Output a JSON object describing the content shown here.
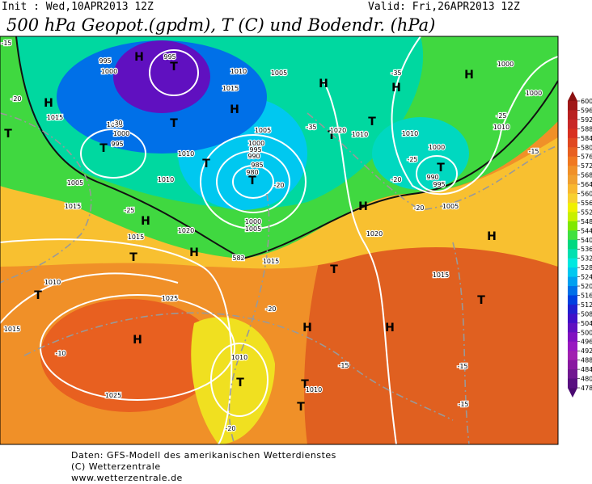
{
  "header": {
    "init": "Init : Wed,10APR2013 12Z",
    "valid": "Valid: Fri,26APR2013 12Z",
    "title": "500 hPa Geopot.(gpdm), T (C) und Bodendr. (hPa)"
  },
  "legend": {
    "ticks": [
      600,
      596,
      592,
      588,
      584,
      580,
      576,
      572,
      568,
      564,
      560,
      556,
      552,
      548,
      544,
      540,
      536,
      532,
      528,
      524,
      520,
      516,
      512,
      508,
      504,
      500,
      496,
      492,
      488,
      484,
      480,
      478
    ],
    "colors": [
      "#a01818",
      "#b82020",
      "#c82828",
      "#d83020",
      "#e04820",
      "#e86020",
      "#f07820",
      "#f09028",
      "#f0a030",
      "#f8b830",
      "#f8d030",
      "#f0f000",
      "#c8f000",
      "#80e800",
      "#40e040",
      "#00d880",
      "#00e0b0",
      "#00e8e0",
      "#00c8f0",
      "#00a0f0",
      "#0070e8",
      "#0040e0",
      "#2020d0",
      "#4010c8",
      "#6010c0",
      "#8010c0",
      "#9818c0",
      "#a020b0",
      "#8818a0",
      "#701890",
      "#581080"
    ]
  },
  "map": {
    "labels": [
      "H",
      "H",
      "H",
      "H",
      "H",
      "H",
      "H",
      "H",
      "H",
      "H",
      "H",
      "H",
      "H",
      "T",
      "T",
      "T",
      "T",
      "T",
      "T",
      "T",
      "T",
      "T",
      "T",
      "T",
      "T",
      "T",
      "T",
      "T",
      "T",
      "995",
      "995",
      "1000",
      "1010",
      "1005",
      "1015",
      "1015",
      "1005",
      "1000",
      "995",
      "1010",
      "1010",
      "1005",
      "1015",
      "1005",
      "1000",
      "995",
      "990",
      "985",
      "980",
      "1000",
      "1005",
      "1020",
      "1015",
      "1015",
      "1020",
      "1010",
      "1010",
      "1000",
      "990",
      "995",
      "1005",
      "1020",
      "1000",
      "1000",
      "1010",
      "1010",
      "1025",
      "1015",
      "1010",
      "1025",
      "1010",
      "1015",
      "-15",
      "-20",
      "-30",
      "-35",
      "-35",
      "-25",
      "-25",
      "-20",
      "-20",
      "-10",
      "-15",
      "-20",
      "-15",
      "-15",
      "-20",
      "-15",
      "-25",
      "-20",
      "582"
    ]
  },
  "footer": {
    "source": "Daten: GFS-Modell des amerikanischen Wetterdienstes",
    "copyright": "(C) Wetterzentrale",
    "url": "www.wetterzentrale.de"
  }
}
